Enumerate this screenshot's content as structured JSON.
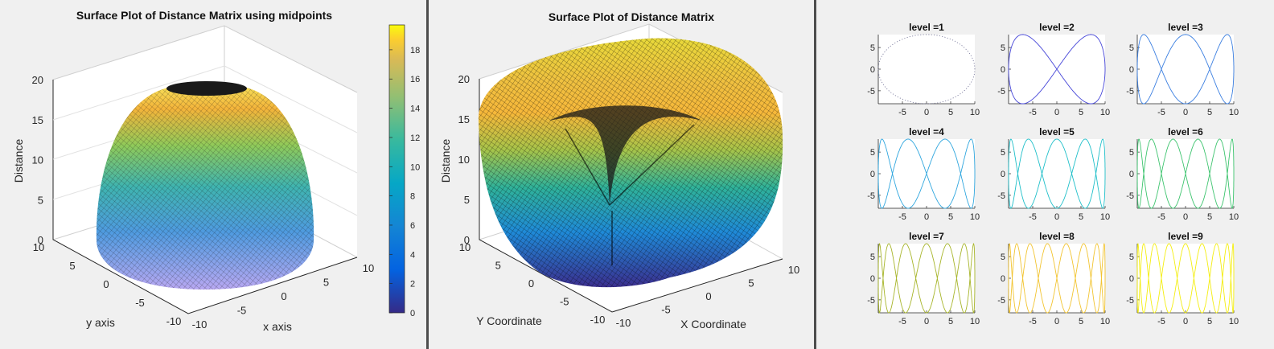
{
  "colors": {
    "figure_bg": "#f0f0f0",
    "window_gap": "#4d4d4d",
    "colormap": "parula"
  },
  "chart_data": [
    {
      "type": "surface",
      "title": "Surface Plot of Distance Matrix using midpoints",
      "xlabel": "x axis",
      "ylabel": "y axis",
      "zlabel": "Distance",
      "x_ticks": [
        "-10",
        "-5",
        "0",
        "5",
        "10"
      ],
      "y_ticks": [
        "-10",
        "-5",
        "0",
        "5",
        "10"
      ],
      "z_ticks": [
        "0",
        "5",
        "10",
        "15",
        "20"
      ],
      "xlim": [
        -10,
        10
      ],
      "ylim": [
        -10,
        10
      ],
      "zlim": [
        0,
        20
      ],
      "shape": "dome, peak z = 19.7 at the center",
      "colorbar": {
        "ticks": [
          "0",
          "2",
          "4",
          "6",
          "8",
          "10",
          "12",
          "14",
          "16",
          "18"
        ],
        "range": [
          0,
          19.7
        ]
      }
    },
    {
      "type": "surface",
      "title": "Surface Plot of Distance Matrix",
      "xlabel": "X Coordinate",
      "ylabel": "Y Coordinate",
      "zlabel": "Distance",
      "x_ticks": [
        "-10",
        "-5",
        "0",
        "5",
        "10"
      ],
      "y_ticks": [
        "-10",
        "-5",
        "0",
        "5",
        "10"
      ],
      "z_ticks": [
        "0",
        "5",
        "10",
        "15",
        "20"
      ],
      "xlim": [
        -10,
        10
      ],
      "ylim": [
        -10,
        10
      ],
      "zlim": [
        0,
        20
      ],
      "shape": "ring surface, rim z ≈ 20, three-lobed fold down to z ≈ 5 at the center"
    },
    {
      "type": "line",
      "layout": "3x3 subplots of Lissajous curves x = 10·cos(t), y = 8·sin(level·t)",
      "xlim": [
        -10,
        10
      ],
      "ylim": [
        -8,
        8
      ],
      "x_ticks": [
        "-5",
        "0",
        "5",
        "10"
      ],
      "y_ticks": [
        "5",
        "0",
        "-5"
      ],
      "panels": [
        {
          "title": "level =1",
          "level": 1,
          "color": "#7f7fa0",
          "style": "dotted"
        },
        {
          "title": "level =2",
          "level": 2,
          "color": "#4545d8"
        },
        {
          "title": "level =3",
          "level": 3,
          "color": "#3a7ee0"
        },
        {
          "title": "level =4",
          "level": 4,
          "color": "#2fa6de"
        },
        {
          "title": "level =5",
          "level": 5,
          "color": "#1fbfc9"
        },
        {
          "title": "level =6",
          "level": 6,
          "color": "#3dc46e"
        },
        {
          "title": "level =7",
          "level": 7,
          "color": "#a7b52a"
        },
        {
          "title": "level =8",
          "level": 8,
          "color": "#f2c430"
        },
        {
          "title": "level =9",
          "level": 9,
          "color": "#f4ee10"
        }
      ]
    }
  ]
}
